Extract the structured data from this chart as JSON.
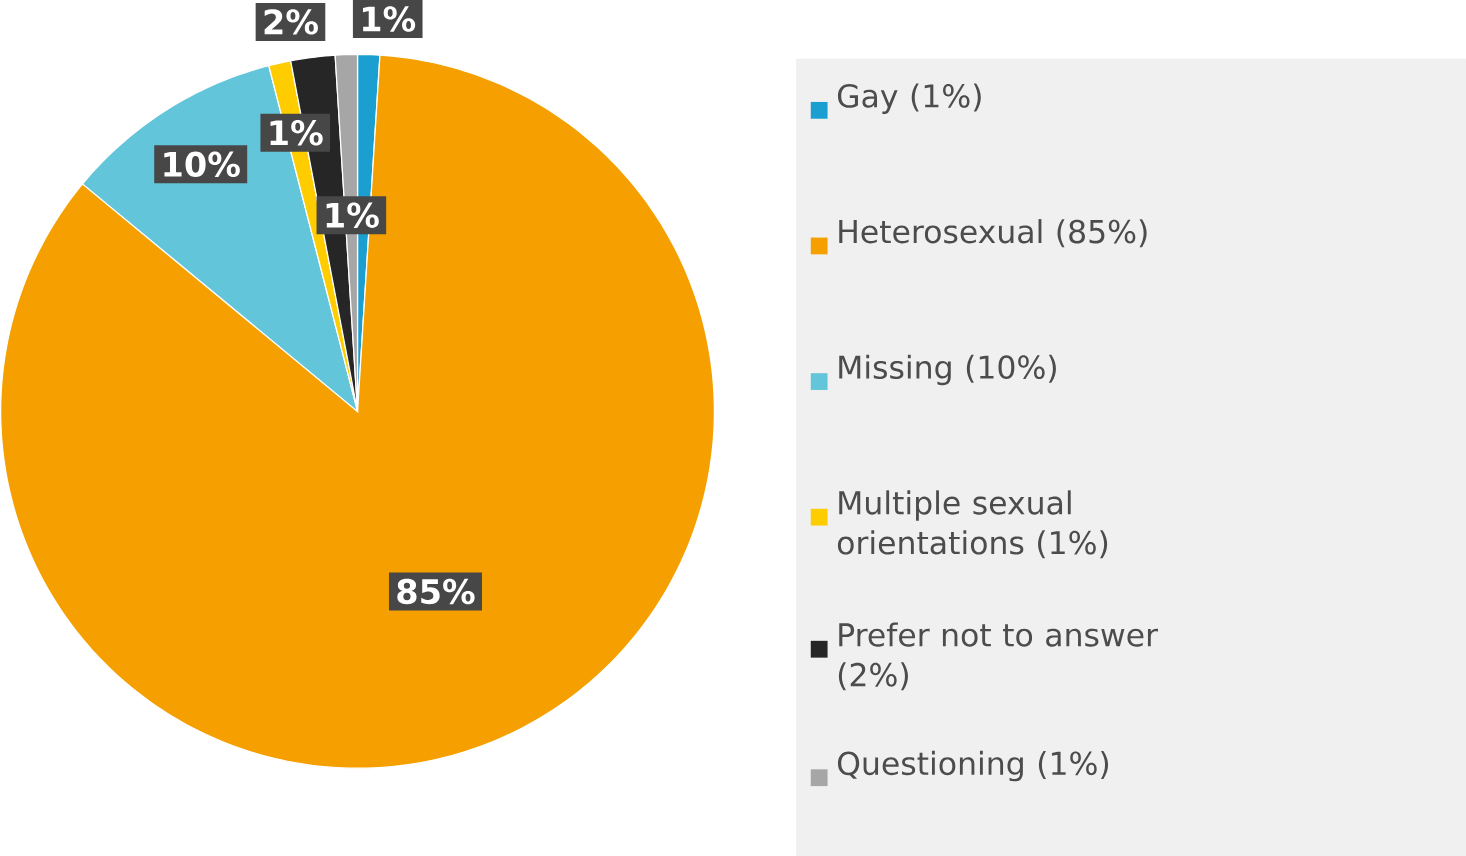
{
  "chart_data": {
    "type": "pie",
    "categories": [
      "Gay (1%)",
      "Heterosexual (85%)",
      "Missing (10%)",
      "Multiple sexual orientations (1%)",
      "Prefer not to answer (2%)",
      "Questioning (1%)"
    ],
    "values": [
      1,
      85,
      10,
      1,
      2,
      1
    ],
    "colors": [
      "#1a9fd0",
      "#f5a000",
      "#63c5d9",
      "#ffcc00",
      "#262626",
      "#a6a6a6"
    ],
    "value_labels": [
      "1%",
      "85%",
      "10%",
      "1%",
      "2%",
      "1%"
    ],
    "legend": "right"
  }
}
